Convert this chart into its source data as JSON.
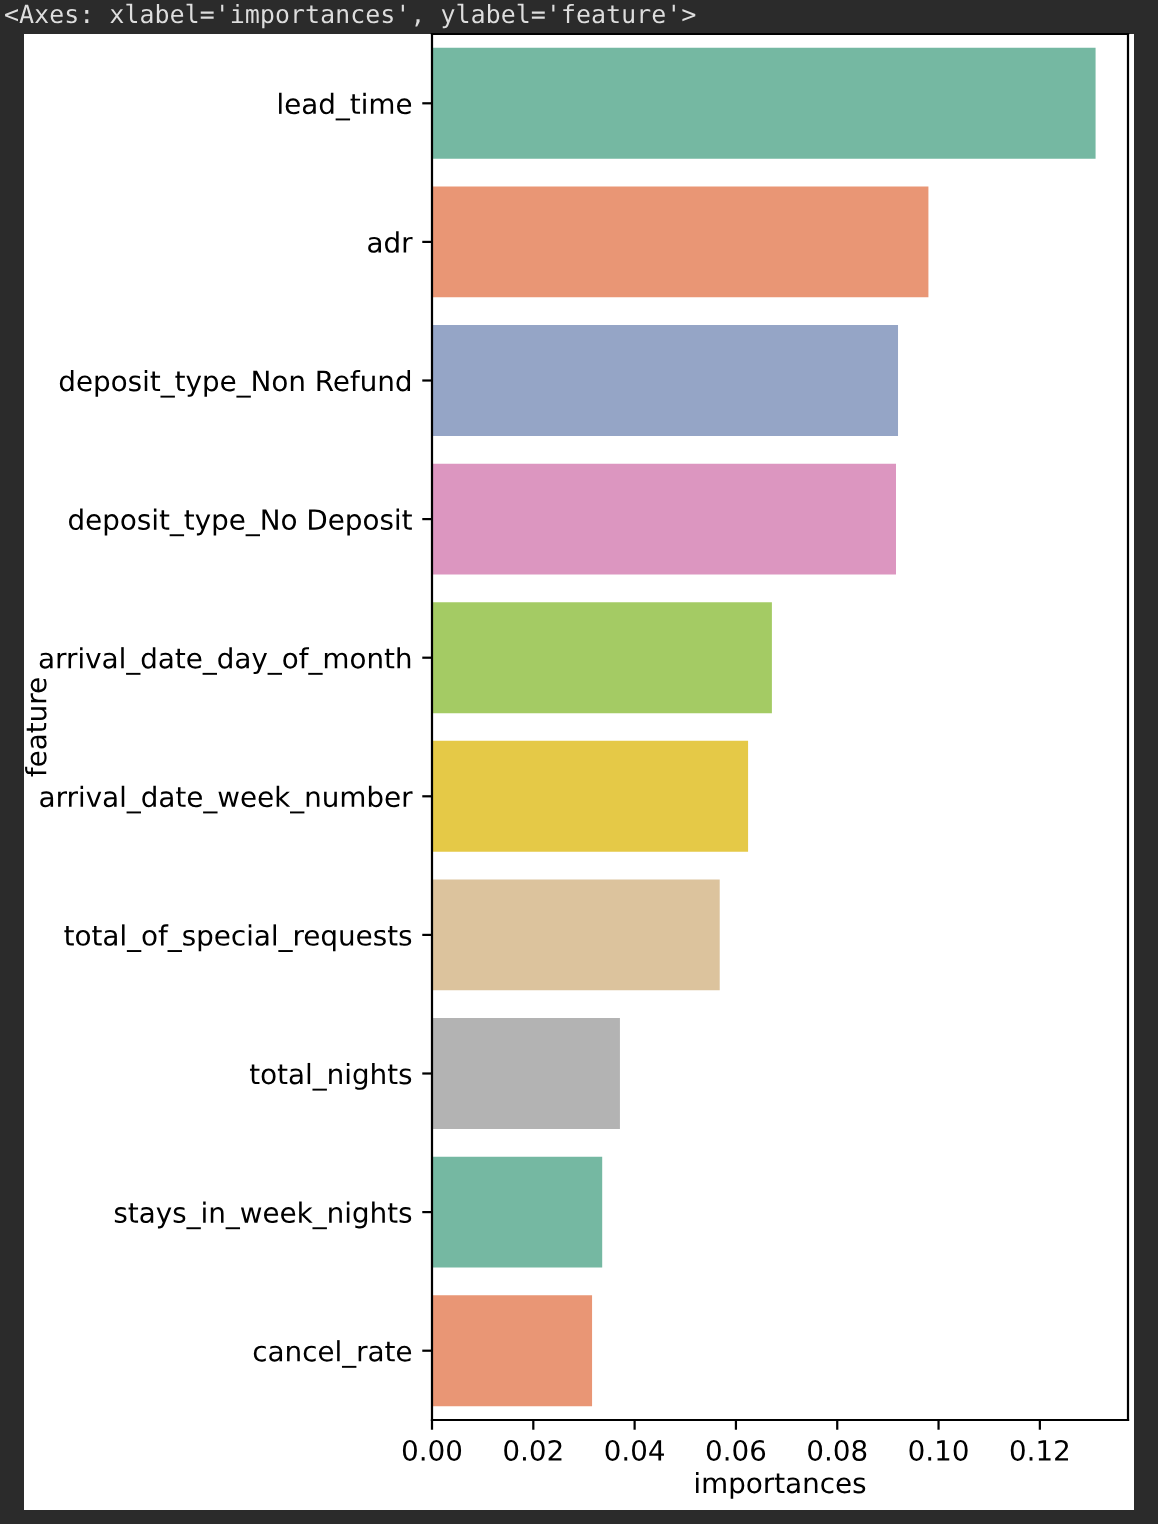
{
  "chart_data": {
    "type": "bar",
    "orientation": "horizontal",
    "xlabel": "importances",
    "ylabel": "feature",
    "annotations": [
      "<Axes: xlabel='importances', ylabel='feature'>"
    ],
    "categories": [
      "lead_time",
      "adr",
      "deposit_type_Non Refund",
      "deposit_type_No Deposit",
      "arrival_date_day_of_month",
      "arrival_date_week_number",
      "total_of_special_requests",
      "total_nights",
      "stays_in_week_nights",
      "cancel_rate"
    ],
    "values": [
      0.131,
      0.098,
      0.092,
      0.0916,
      0.0671,
      0.0624,
      0.0568,
      0.0371,
      0.0336,
      0.0316
    ],
    "colors": [
      "#75b8a2",
      "#e99675",
      "#95a5c6",
      "#dc96c0",
      "#a4cb64",
      "#e5c947",
      "#dcc39d",
      "#b3b3b3",
      "#75b8a2",
      "#e99675"
    ],
    "xlim": [
      0,
      0.1374
    ],
    "xticks": [
      {
        "value": 0,
        "label": "0.00"
      },
      {
        "value": 0.02,
        "label": "0.02"
      },
      {
        "value": 0.04,
        "label": "0.04"
      },
      {
        "value": 0.06,
        "label": "0.06"
      },
      {
        "value": 0.08,
        "label": "0.08"
      },
      {
        "value": 0.1,
        "label": "0.10"
      },
      {
        "value": 0.12,
        "label": "0.12"
      }
    ],
    "grid": false,
    "legend": false
  }
}
